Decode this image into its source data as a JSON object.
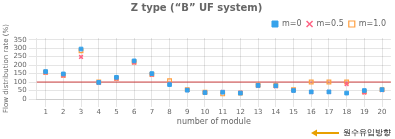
{
  "chart_data": {
    "type": "scatter",
    "title": "Z type (“B” UF system)",
    "x_label": "number of module",
    "y_label": "Flow distribution rate (%)",
    "x": [
      1,
      2,
      3,
      4,
      5,
      6,
      7,
      8,
      9,
      10,
      11,
      12,
      13,
      14,
      15,
      16,
      17,
      18,
      19,
      20
    ],
    "xlim": [
      0.5,
      20.5
    ],
    "ylim": [
      0,
      360
    ],
    "xticks": [
      1,
      2,
      3,
      4,
      5,
      6,
      7,
      8,
      9,
      10,
      11,
      12,
      13,
      14,
      15,
      16,
      17,
      18,
      19,
      20
    ],
    "yticks": [
      0,
      50,
      100,
      150,
      200,
      250,
      300,
      350
    ],
    "grid": true,
    "legend": "upper right",
    "reference_line": {
      "value": 100,
      "color": "#d04040"
    },
    "annotation": {
      "text": "원수유입방향",
      "arrow_color": "#e8a000"
    },
    "series": [
      {
        "name": "m=0",
        "marker": "square",
        "values": [
          162,
          148,
          295,
          98,
          128,
          225,
          150,
          85,
          52,
          38,
          40,
          35,
          80,
          78,
          50,
          42,
          42,
          35,
          50,
          55
        ]
      },
      {
        "name": "m=0.5",
        "marker": "x",
        "values": [
          155,
          138,
          248,
          95,
          120,
          215,
          143,
          90,
          52,
          38,
          42,
          38,
          78,
          75,
          50,
          40,
          42,
          88,
          38,
          52
        ]
      },
      {
        "name": "m=1.0",
        "marker": "open square",
        "values": [
          158,
          140,
          285,
          100,
          122,
          218,
          145,
          108,
          55,
          40,
          30,
          35,
          82,
          80,
          55,
          100,
          100,
          100,
          42,
          55
        ]
      }
    ]
  }
}
